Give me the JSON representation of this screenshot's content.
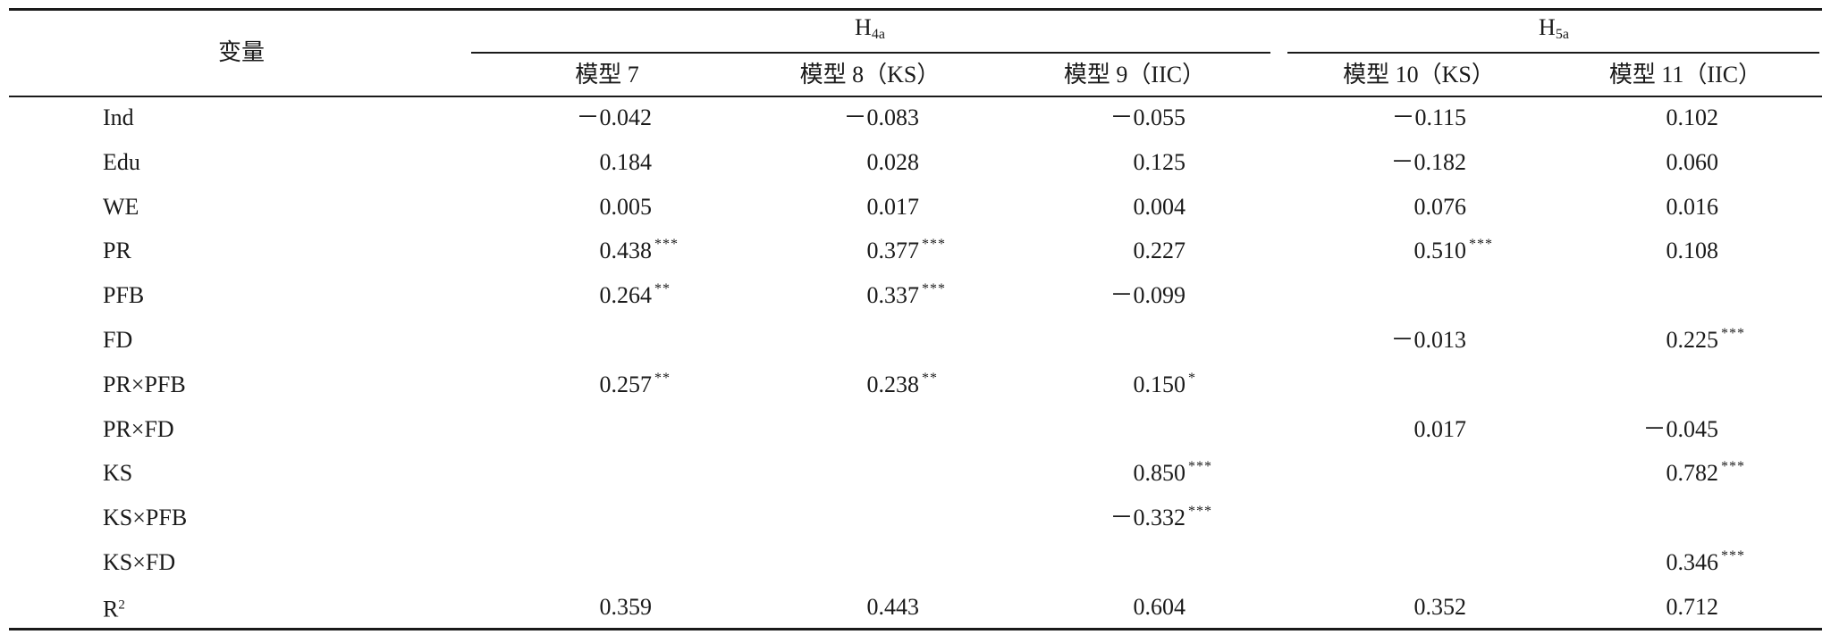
{
  "table": {
    "header": {
      "variable": "变量",
      "groups": [
        {
          "main": "H",
          "sub": "4a"
        },
        {
          "main": "H",
          "sub": "5a"
        }
      ],
      "models": [
        "模型 7",
        "模型 8（KS）",
        "模型 9（IIC）",
        "模型 10（KS）",
        "模型 11（IIC）"
      ]
    },
    "rows": [
      {
        "label": "Ind",
        "cells": [
          {
            "value": "－0.042"
          },
          {
            "value": "－0.083"
          },
          {
            "value": "－0.055"
          },
          {
            "value": "－0.115"
          },
          {
            "value": "0.102"
          }
        ]
      },
      {
        "label": "Edu",
        "cells": [
          {
            "value": "0.184"
          },
          {
            "value": "0.028"
          },
          {
            "value": "0.125"
          },
          {
            "value": "－0.182"
          },
          {
            "value": "0.060"
          }
        ]
      },
      {
        "label": "WE",
        "cells": [
          {
            "value": "0.005"
          },
          {
            "value": "0.017"
          },
          {
            "value": "0.004"
          },
          {
            "value": "0.076"
          },
          {
            "value": "0.016"
          }
        ]
      },
      {
        "label": "PR",
        "cells": [
          {
            "value": "0.438",
            "sig": "***"
          },
          {
            "value": "0.377",
            "sig": "***"
          },
          {
            "value": "0.227"
          },
          {
            "value": "0.510",
            "sig": "***"
          },
          {
            "value": "0.108"
          }
        ]
      },
      {
        "label": "PFB",
        "cells": [
          {
            "value": "0.264",
            "sig": "**"
          },
          {
            "value": "0.337",
            "sig": "***"
          },
          {
            "value": "－0.099"
          },
          null,
          null
        ]
      },
      {
        "label": "FD",
        "cells": [
          null,
          null,
          null,
          {
            "value": "－0.013"
          },
          {
            "value": "0.225",
            "sig": "***"
          }
        ]
      },
      {
        "label": "PR×PFB",
        "cells": [
          {
            "value": "0.257",
            "sig": "**"
          },
          {
            "value": "0.238",
            "sig": "**"
          },
          {
            "value": "0.150",
            "sig": "*"
          },
          null,
          null
        ]
      },
      {
        "label": "PR×FD",
        "cells": [
          null,
          null,
          null,
          {
            "value": "0.017"
          },
          {
            "value": "－0.045"
          }
        ]
      },
      {
        "label": "KS",
        "cells": [
          null,
          null,
          {
            "value": "0.850",
            "sig": "***"
          },
          null,
          {
            "value": "0.782",
            "sig": "***"
          }
        ]
      },
      {
        "label": "KS×PFB",
        "cells": [
          null,
          null,
          {
            "value": "－0.332",
            "sig": "***"
          },
          null,
          null
        ]
      },
      {
        "label": "KS×FD",
        "cells": [
          null,
          null,
          null,
          null,
          {
            "value": "0.346",
            "sig": "***"
          }
        ]
      },
      {
        "label": {
          "main": "R",
          "sup": "2"
        },
        "cells": [
          {
            "value": "0.359"
          },
          {
            "value": "0.443"
          },
          {
            "value": "0.604"
          },
          {
            "value": "0.352"
          },
          {
            "value": "0.712"
          }
        ]
      }
    ]
  }
}
